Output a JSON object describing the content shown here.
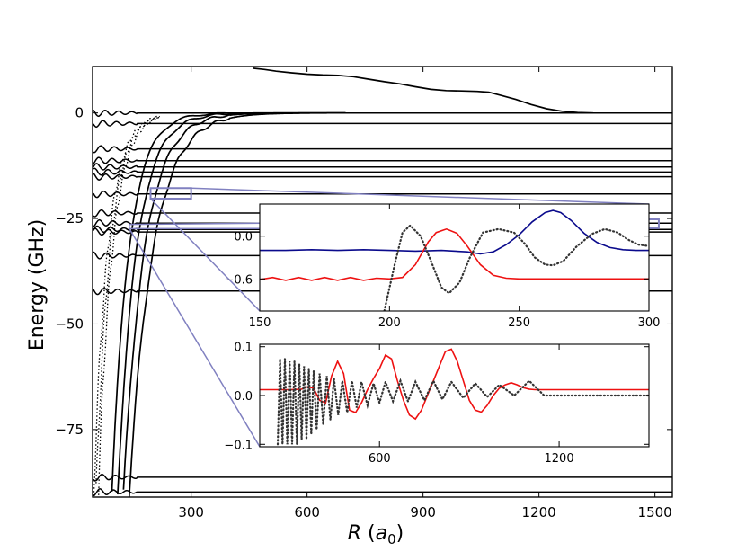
{
  "chart_data": [
    {
      "id": "main",
      "type": "line",
      "title": "",
      "xlabel": "R (a0)",
      "xlabel_parts": {
        "var": "R",
        "open": " (",
        "sym": "a",
        "sub": "0",
        "close": ")"
      },
      "ylabel": "Energy (GHz)",
      "xlim": [
        45,
        1545
      ],
      "ylim": [
        -91,
        11
      ],
      "xticks": [
        300,
        600,
        900,
        1200,
        1500
      ],
      "xtick_labels": [
        "300",
        "600",
        "900",
        "1200",
        "1500"
      ],
      "yticks": [
        0,
        -25,
        -50,
        -75
      ],
      "ytick_labels": [
        "0",
        "−25",
        "−50",
        "−75"
      ],
      "flat_levels": [
        0,
        -2.5,
        -8.5,
        -11.3,
        -12.8,
        -14.0,
        -15.1,
        -19.2,
        -23.7,
        -26.1,
        -27.6,
        -28.2,
        -33.8,
        -42.2,
        -86.3,
        -89.8
      ],
      "threshold_curve": {
        "x": [
          460,
          490,
          520,
          560,
          600,
          640,
          680,
          720,
          760,
          800,
          840,
          880,
          920,
          960,
          1000,
          1040,
          1070,
          1100,
          1140,
          1180,
          1220,
          1260,
          1300,
          1340
        ],
        "y": [
          10.6,
          10.3,
          9.9,
          9.5,
          9.2,
          9.0,
          8.9,
          8.6,
          8.0,
          7.4,
          6.9,
          6.2,
          5.6,
          5.3,
          5.2,
          5.1,
          4.9,
          4.2,
          3.2,
          2.0,
          1.0,
          0.4,
          0.1,
          0.0
        ]
      },
      "highlight_boxes": [
        {
          "x": [
            195,
            300
          ],
          "y": [
            -17.8,
            -20.3
          ]
        },
        {
          "x": [
            1480,
            1510
          ],
          "y": [
            -25.2,
            -27.3
          ]
        }
      ],
      "series_color": "#000000",
      "connector_color": "#8080c0"
    },
    {
      "id": "inset-top",
      "type": "line",
      "xlim": [
        150,
        300
      ],
      "ylim": [
        -1.05,
        0.45
      ],
      "xticks": [
        150,
        200,
        250,
        300
      ],
      "xtick_labels": [
        "150",
        "200",
        "250",
        "300"
      ],
      "yticks": [
        0.0,
        -0.6
      ],
      "ytick_labels": [
        "0.0",
        "−0.6"
      ],
      "series": [
        {
          "name": "blue",
          "color": "#0a0a8c",
          "style": "solid",
          "x": [
            150,
            160,
            170,
            180,
            190,
            200,
            210,
            220,
            230,
            235,
            240,
            245,
            250,
            255,
            260,
            263,
            266,
            270,
            275,
            280,
            285,
            290,
            295,
            300
          ],
          "y": [
            -0.2,
            -0.2,
            -0.19,
            -0.2,
            -0.19,
            -0.2,
            -0.21,
            -0.2,
            -0.22,
            -0.25,
            -0.22,
            -0.12,
            0.02,
            0.2,
            0.33,
            0.36,
            0.33,
            0.22,
            0.04,
            -0.09,
            -0.16,
            -0.19,
            -0.2,
            -0.2
          ]
        },
        {
          "name": "red",
          "color": "#ee1111",
          "style": "solid",
          "x": [
            150,
            155,
            160,
            165,
            170,
            175,
            180,
            185,
            190,
            195,
            200,
            205,
            210,
            215,
            218,
            222,
            226,
            230,
            235,
            240,
            245,
            250,
            260,
            280,
            300
          ],
          "y": [
            -0.61,
            -0.58,
            -0.62,
            -0.58,
            -0.62,
            -0.58,
            -0.62,
            -0.58,
            -0.62,
            -0.59,
            -0.6,
            -0.58,
            -0.4,
            -0.08,
            0.05,
            0.1,
            0.04,
            -0.14,
            -0.4,
            -0.55,
            -0.59,
            -0.6,
            -0.6,
            -0.6,
            -0.6
          ]
        },
        {
          "name": "dotted",
          "color": "#333333",
          "style": "dotted",
          "x": [
            198,
            202,
            205,
            208,
            212,
            216,
            220,
            223,
            227,
            231,
            236,
            242,
            248,
            252,
            256,
            260,
            263,
            267,
            272,
            278,
            283,
            288,
            292,
            296,
            300
          ],
          "y": [
            -1.05,
            -0.4,
            0.05,
            0.15,
            0.0,
            -0.35,
            -0.72,
            -0.8,
            -0.65,
            -0.3,
            0.05,
            0.1,
            0.05,
            -0.1,
            -0.3,
            -0.4,
            -0.41,
            -0.35,
            -0.15,
            0.03,
            0.1,
            0.05,
            -0.05,
            -0.12,
            -0.14
          ]
        }
      ]
    },
    {
      "id": "inset-bottom",
      "type": "line",
      "xlim": [
        200,
        1500
      ],
      "ylim": [
        -0.105,
        0.105
      ],
      "xticks": [
        600,
        1200
      ],
      "xtick_labels": [
        "600",
        "1200"
      ],
      "yticks": [
        0.1,
        0.0,
        -0.1
      ],
      "ytick_labels": [
        "0.1",
        "0.0",
        "−0.1"
      ],
      "series": [
        {
          "name": "red",
          "color": "#ee1111",
          "style": "solid",
          "x": [
            200,
            300,
            340,
            360,
            380,
            400,
            420,
            440,
            460,
            480,
            500,
            520,
            540,
            560,
            580,
            600,
            620,
            640,
            660,
            680,
            700,
            720,
            740,
            760,
            780,
            800,
            820,
            840,
            860,
            880,
            900,
            920,
            940,
            960,
            980,
            1000,
            1020,
            1040,
            1060,
            1080,
            1100,
            1120,
            1140,
            1160,
            1200,
            1300,
            1500
          ],
          "y": [
            0.012,
            0.012,
            0.013,
            0.018,
            0.015,
            -0.01,
            -0.015,
            0.04,
            0.07,
            0.045,
            -0.03,
            -0.035,
            -0.015,
            0.012,
            0.035,
            0.055,
            0.083,
            0.075,
            0.03,
            -0.01,
            -0.04,
            -0.048,
            -0.03,
            0.0,
            0.03,
            0.06,
            0.09,
            0.095,
            0.07,
            0.03,
            -0.01,
            -0.03,
            -0.034,
            -0.02,
            0.0,
            0.015,
            0.022,
            0.026,
            0.022,
            0.016,
            0.013,
            0.012,
            0.012,
            0.012,
            0.012,
            0.012,
            0.012
          ]
        },
        {
          "name": "dotted",
          "color": "#333333",
          "style": "dotted",
          "x": [
            260,
            268,
            276,
            284,
            292,
            300,
            308,
            316,
            324,
            332,
            340,
            348,
            356,
            364,
            372,
            380,
            390,
            400,
            412,
            424,
            436,
            448,
            462,
            476,
            492,
            508,
            524,
            540,
            560,
            580,
            600,
            620,
            645,
            670,
            695,
            720,
            750,
            780,
            810,
            840,
            880,
            920,
            960,
            1000,
            1050,
            1100,
            1150,
            1200,
            1300,
            1400,
            1500
          ],
          "y": [
            -0.1,
            0.075,
            -0.1,
            0.075,
            -0.1,
            0.07,
            -0.1,
            0.07,
            -0.1,
            0.065,
            -0.09,
            0.06,
            -0.09,
            0.055,
            -0.08,
            0.05,
            -0.07,
            0.045,
            -0.06,
            0.04,
            -0.05,
            0.035,
            -0.04,
            0.03,
            -0.035,
            0.03,
            -0.025,
            0.028,
            -0.02,
            0.025,
            -0.015,
            0.028,
            -0.012,
            0.03,
            -0.012,
            0.028,
            -0.01,
            0.03,
            -0.008,
            0.028,
            -0.005,
            0.025,
            -0.003,
            0.022,
            0.0,
            0.03,
            0.0,
            0.0,
            0.0,
            0.0,
            0.0
          ]
        }
      ]
    }
  ]
}
